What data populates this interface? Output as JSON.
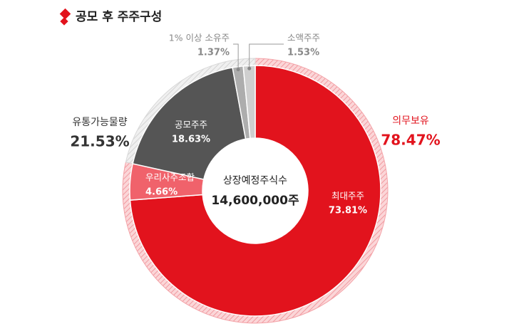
{
  "chart_data": {
    "type": "donut",
    "title": "공모 후 주주구성",
    "center_title": "상장예정주식수",
    "center_value": "14,600,000주",
    "categories": [
      "최대주주",
      "우리사주조합",
      "공모주주",
      "1% 이상 소유주",
      "소액주주"
    ],
    "values": [
      73.81,
      4.66,
      18.63,
      1.37,
      1.53
    ],
    "value_labels": [
      "73.81%",
      "4.66%",
      "18.63%",
      "1.37%",
      "1.53%"
    ],
    "colors": [
      "#e2131d",
      "#f0626b",
      "#555555",
      "#adadad",
      "#cfcfcf"
    ],
    "groups": [
      {
        "name": "의무보유",
        "value": 78.47,
        "value_label": "78.47%",
        "color": "#e2131d"
      },
      {
        "name": "유통가능물량",
        "value": 21.53,
        "value_label": "21.53%",
        "color": "#b9b9b9"
      }
    ]
  }
}
